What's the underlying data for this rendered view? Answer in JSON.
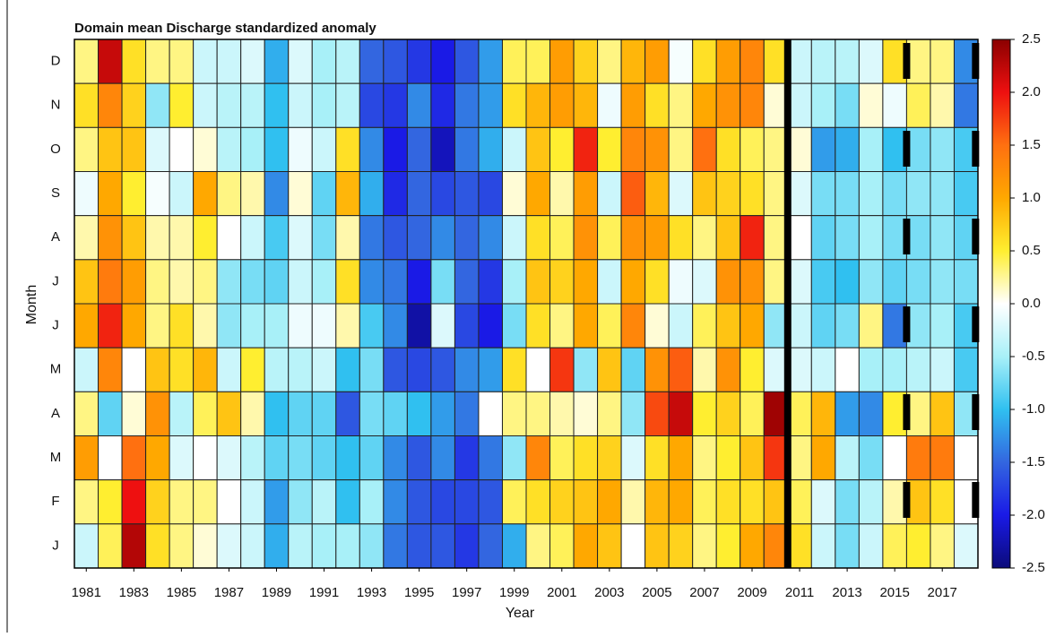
{
  "chart_data": {
    "type": "heatmap",
    "title": "Domain mean Discharge standardized anomaly",
    "x_label": "Year",
    "y_label": "Month",
    "x": [
      1981,
      1982,
      1983,
      1984,
      1985,
      1986,
      1987,
      1988,
      1989,
      1990,
      1991,
      1992,
      1993,
      1994,
      1995,
      1996,
      1997,
      1998,
      1999,
      2000,
      2001,
      2002,
      2003,
      2004,
      2005,
      2006,
      2007,
      2008,
      2009,
      2010,
      2011,
      2012,
      2013,
      2014,
      2015,
      2016,
      2017,
      2018
    ],
    "xlim": [
      1980.5,
      2018.5
    ],
    "xticks": [
      1981,
      1983,
      1985,
      1987,
      1989,
      1991,
      1993,
      1995,
      1997,
      1999,
      2001,
      2003,
      2005,
      2007,
      2009,
      2011,
      2013,
      2015,
      2017
    ],
    "categories": [
      "D",
      "N",
      "O",
      "S",
      "A",
      "J",
      "J",
      "M",
      "A",
      "M",
      "F",
      "J"
    ],
    "values": [
      [
        0.3,
        0.6,
        0.3,
        -0.1,
        0.2,
        0.8,
        1.0,
        -0.3,
        0.3,
        1.1,
        0.3,
        -0.3
      ],
      [
        2.2,
        1.3,
        0.8,
        1.0,
        1.2,
        1.4,
        1.9,
        1.3,
        -0.8,
        0.0,
        0.5,
        0.4
      ],
      [
        0.6,
        0.7,
        0.8,
        0.5,
        0.8,
        1.1,
        1.0,
        0.0,
        0.1,
        1.5,
        2.0,
        2.3
      ],
      [
        0.3,
        -0.6,
        -0.2,
        -0.05,
        0.2,
        0.3,
        0.3,
        0.8,
        1.2,
        1.0,
        0.7,
        0.6
      ],
      [
        0.3,
        0.5,
        0.0,
        -0.3,
        0.2,
        0.2,
        0.6,
        0.6,
        -0.4,
        -0.2,
        0.3,
        0.3
      ],
      [
        -0.3,
        -0.3,
        0.1,
        1.0,
        0.5,
        0.3,
        0.2,
        0.9,
        0.4,
        0.0,
        0.3,
        0.1
      ],
      [
        -0.3,
        -0.4,
        -0.4,
        0.3,
        0.0,
        -0.6,
        -0.6,
        -0.3,
        0.8,
        -0.2,
        0.0,
        -0.2
      ],
      [
        -0.2,
        -0.4,
        -0.5,
        0.2,
        -0.3,
        -0.7,
        -0.5,
        0.5,
        0.2,
        -0.4,
        -0.3,
        -0.3
      ],
      [
        -1.1,
        -1.0,
        -1.0,
        -1.3,
        -0.9,
        -0.8,
        -0.5,
        -0.4,
        -1.0,
        -0.8,
        -1.2,
        -1.1
      ],
      [
        -0.2,
        -0.3,
        -0.1,
        0.1,
        -0.2,
        -0.3,
        -0.1,
        -0.4,
        -0.8,
        -0.7,
        -0.6,
        -0.4
      ],
      [
        -0.5,
        -0.5,
        -0.3,
        -0.8,
        -0.7,
        -0.5,
        -0.1,
        -0.3,
        -0.8,
        -0.8,
        -0.4,
        -0.5
      ],
      [
        -0.4,
        -0.4,
        0.6,
        0.9,
        0.2,
        0.6,
        0.2,
        -1.0,
        -1.6,
        -1.0,
        -1.0,
        -0.5
      ],
      [
        -1.5,
        -1.7,
        -1.3,
        -1.1,
        -1.4,
        -1.3,
        -0.9,
        -0.7,
        -0.7,
        -0.8,
        -0.5,
        -0.6
      ],
      [
        -1.6,
        -1.8,
        -2.0,
        -1.9,
        -1.6,
        -1.4,
        -1.3,
        -1.6,
        -0.8,
        -1.3,
        -1.3,
        -1.4
      ],
      [
        -1.8,
        -1.3,
        -1.5,
        -1.5,
        -1.5,
        -2.0,
        -2.3,
        -1.7,
        -1.0,
        -1.6,
        -1.6,
        -1.6
      ],
      [
        -2.0,
        -1.9,
        -2.2,
        -1.7,
        -1.3,
        -0.7,
        -0.2,
        -1.6,
        -1.2,
        -1.3,
        -1.7,
        -1.6
      ],
      [
        -1.6,
        -1.4,
        -1.4,
        -1.6,
        -1.5,
        -1.5,
        -1.7,
        -1.3,
        -1.4,
        -1.8,
        -1.7,
        -1.8
      ],
      [
        -1.2,
        -1.2,
        -1.1,
        -1.7,
        -1.3,
        -1.8,
        -2.0,
        -1.2,
        0.0,
        -1.4,
        -1.6,
        -1.5
      ],
      [
        0.4,
        0.6,
        -0.3,
        0.1,
        -0.3,
        -0.5,
        -0.7,
        0.6,
        0.3,
        -0.6,
        0.4,
        -1.1
      ],
      [
        0.4,
        0.9,
        0.8,
        1.0,
        0.6,
        0.8,
        0.6,
        0.0,
        0.3,
        1.3,
        0.6,
        0.3
      ],
      [
        1.1,
        1.1,
        0.5,
        0.2,
        0.4,
        0.7,
        0.3,
        1.8,
        0.2,
        0.4,
        0.7,
        0.4
      ],
      [
        0.7,
        0.9,
        1.9,
        1.1,
        1.2,
        1.0,
        1.0,
        -0.6,
        0.1,
        0.6,
        0.8,
        1.0
      ],
      [
        0.3,
        -0.1,
        0.5,
        -0.3,
        0.4,
        -0.3,
        0.4,
        0.8,
        0.3,
        0.7,
        1.0,
        0.8
      ],
      [
        0.9,
        1.1,
        1.3,
        1.6,
        1.2,
        1.0,
        1.3,
        -0.8,
        -0.6,
        -0.2,
        0.2,
        0.0
      ],
      [
        1.1,
        0.6,
        1.2,
        0.9,
        1.1,
        0.6,
        0.1,
        1.2,
        1.7,
        0.6,
        0.9,
        0.8
      ],
      [
        -0.05,
        0.3,
        0.3,
        -0.2,
        0.6,
        -0.1,
        -0.3,
        1.6,
        2.2,
        1.0,
        1.0,
        0.7
      ],
      [
        0.6,
        1.0,
        1.5,
        0.8,
        0.3,
        -0.2,
        0.4,
        0.2,
        0.5,
        0.3,
        0.4,
        0.3
      ],
      [
        1.1,
        1.2,
        0.6,
        0.7,
        0.8,
        1.2,
        0.8,
        1.2,
        0.7,
        0.5,
        0.6,
        0.5
      ],
      [
        1.3,
        1.3,
        0.4,
        0.6,
        1.9,
        1.2,
        1.0,
        0.5,
        0.4,
        0.8,
        0.6,
        1.0
      ],
      [
        0.6,
        0.1,
        0.3,
        0.3,
        0.3,
        0.3,
        -0.6,
        -0.2,
        2.4,
        1.8,
        0.8,
        1.3
      ],
      [
        -0.3,
        -0.3,
        0.1,
        -0.2,
        0.0,
        -0.2,
        -0.3,
        -0.2,
        0.4,
        0.3,
        0.4,
        0.6
      ],
      [
        -0.4,
        -0.5,
        -1.2,
        -0.7,
        -0.8,
        -0.9,
        -0.8,
        -0.3,
        0.9,
        1.0,
        -0.2,
        -0.3
      ],
      [
        -0.4,
        -0.7,
        -1.1,
        -0.7,
        -0.7,
        -1.0,
        -0.7,
        0.0,
        -1.2,
        -0.4,
        -0.7,
        -0.7
      ],
      [
        -0.2,
        0.1,
        -0.5,
        -0.5,
        -0.5,
        -0.6,
        0.3,
        -0.5,
        -1.3,
        -0.7,
        -0.4,
        -0.3
      ],
      [
        0.6,
        -0.1,
        -1.0,
        -0.7,
        -0.7,
        -0.8,
        -1.4,
        -0.5,
        0.5,
        0.0,
        0.2,
        0.4
      ],
      [
        0.3,
        0.4,
        -0.7,
        -0.6,
        -0.7,
        -0.7,
        -0.6,
        -0.4,
        0.3,
        1.4,
        0.8,
        0.5
      ],
      [
        0.3,
        0.2,
        -0.6,
        -0.6,
        -0.6,
        -0.6,
        -0.5,
        -0.3,
        0.8,
        1.4,
        0.6,
        0.3
      ],
      [
        -1.3,
        -1.4,
        -0.9,
        -0.9,
        -0.8,
        -0.7,
        -0.9,
        -0.9,
        -0.6,
        0.0,
        0.0,
        -0.2
      ]
    ],
    "zlim": [
      -2.5,
      2.5
    ],
    "colorscale": [
      "#0b0b7a",
      "#1a1ae6",
      "#3366e0",
      "#30c0f0",
      "#a8f0f8",
      "#ffffff",
      "#ffee30",
      "#ffa800",
      "#ff7010",
      "#ee1010",
      "#8b0000"
    ],
    "colorbar_ticks": [
      2.5,
      {
        "value": 2,
        "label": "2.0"
      },
      1.5,
      {
        "value": 1,
        "label": "1.0"
      },
      0.5,
      {
        "value": 0,
        "label": "0.0"
      },
      -0.5,
      {
        "value": -1,
        "label": "-1.0"
      },
      -1.5,
      {
        "value": -2,
        "label": "-2.0"
      },
      -2.5
    ]
  }
}
